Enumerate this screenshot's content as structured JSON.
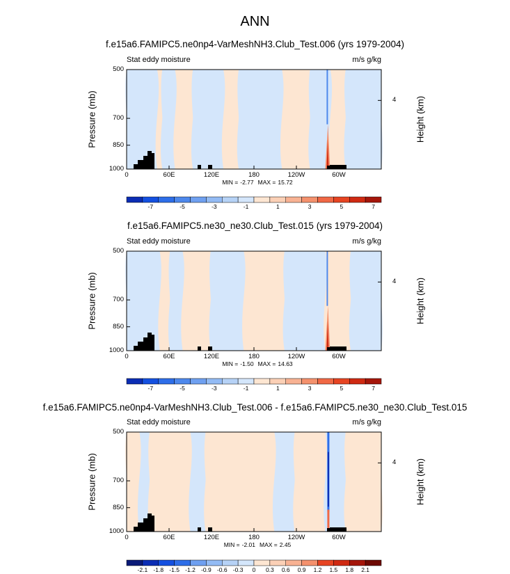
{
  "title": "ANN",
  "colors": {
    "neg_palette": [
      "#0a1a78",
      "#0b2db4",
      "#1450e0",
      "#2e6ee8",
      "#4d88ec",
      "#6fa0f0",
      "#93bbf4",
      "#b6d2f6",
      "#d4e6fb"
    ],
    "pos_palette": [
      "#fde6d2",
      "#fbd0b6",
      "#f8b293",
      "#f4916d",
      "#f06845",
      "#e64422",
      "#cf2a12",
      "#a5160a",
      "#6e0a03"
    ],
    "land": "#000000"
  },
  "chart_data": [
    {
      "type": "heatmap",
      "title": "f.e15a6.FAMIPC5.ne0np4-VarMeshNH3.Club_Test.006 (yrs 1979-2004)",
      "left_string": "Stat eddy moisture",
      "right_string": "m/s g/kg",
      "ylabel": "Pressure (mb)",
      "y2label": "Height (km)",
      "xticks": [
        "0",
        "60E",
        "120E",
        "180",
        "120W",
        "60W"
      ],
      "yticks": [
        "500",
        "700",
        "850",
        "1000"
      ],
      "y2ticks": [
        "4"
      ],
      "min_label": "MIN =",
      "min_value": "-2.77",
      "max_label": "MAX =",
      "max_value": "15.72",
      "colorbar_labels": [
        "-7",
        "-5",
        "-3",
        "-1",
        "1",
        "3",
        "5",
        "7"
      ]
    },
    {
      "type": "heatmap",
      "title": "f.e15a6.FAMIPC5.ne30_ne30.Club_Test.015 (yrs 1979-2004)",
      "left_string": "Stat eddy moisture",
      "right_string": "m/s g/kg",
      "ylabel": "Pressure (mb)",
      "y2label": "Height (km)",
      "xticks": [
        "0",
        "60E",
        "120E",
        "180",
        "120W",
        "60W"
      ],
      "yticks": [
        "500",
        "700",
        "850",
        "1000"
      ],
      "y2ticks": [
        "4"
      ],
      "min_label": "MIN =",
      "min_value": "-1.50",
      "max_label": "MAX =",
      "max_value": "14.63",
      "colorbar_labels": [
        "-7",
        "-5",
        "-3",
        "-1",
        "1",
        "3",
        "5",
        "7"
      ]
    },
    {
      "type": "heatmap",
      "title": "f.e15a6.FAMIPC5.ne0np4-VarMeshNH3.Club_Test.006 - f.e15a6.FAMIPC5.ne30_ne30.Club_Test.015",
      "left_string": "Stat eddy moisture",
      "right_string": "m/s g/kg",
      "ylabel": "Pressure (mb)",
      "y2label": "Height (km)",
      "xticks": [
        "0",
        "60E",
        "120E",
        "180",
        "120W",
        "60W"
      ],
      "yticks": [
        "500",
        "700",
        "850",
        "1000"
      ],
      "y2ticks": [
        "4"
      ],
      "min_label": "MIN =",
      "min_value": "-2.01",
      "max_label": "MAX =",
      "max_value": "2.45",
      "colorbar_labels": [
        "-2.1",
        "-1.8",
        "-1.5",
        "-1.2",
        "-0.9",
        "-0.6",
        "-0.3",
        "0",
        "0.3",
        "0.6",
        "0.9",
        "1.2",
        "1.5",
        "1.8",
        "2.1"
      ]
    }
  ]
}
